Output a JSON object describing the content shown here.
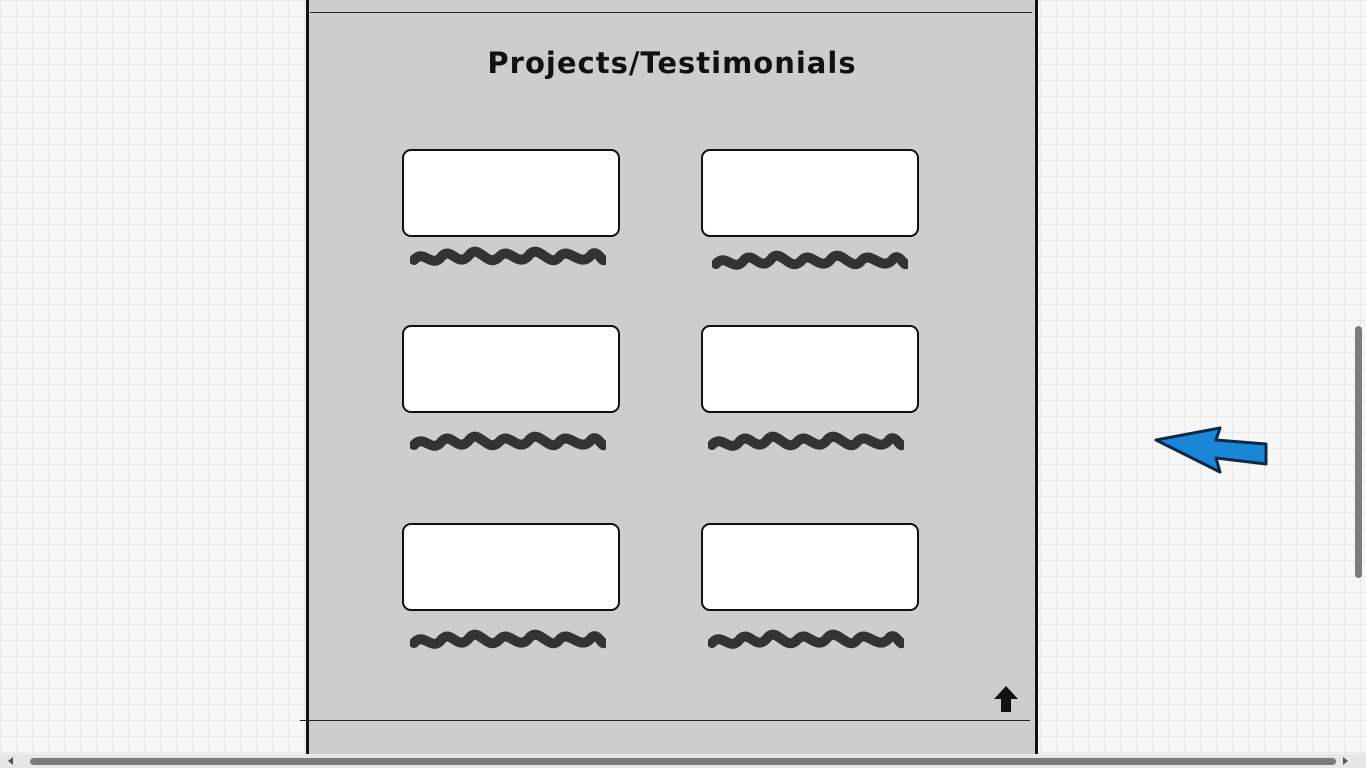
{
  "section": {
    "title": "Projects/Testimonials"
  },
  "cards": [
    {
      "placeholder": "image-placeholder"
    },
    {
      "placeholder": "image-placeholder"
    },
    {
      "placeholder": "image-placeholder"
    },
    {
      "placeholder": "image-placeholder"
    },
    {
      "placeholder": "image-placeholder"
    },
    {
      "placeholder": "image-placeholder"
    }
  ],
  "icons": {
    "back_to_top": "arrow-up-icon",
    "pointer": "blue-pointer-arrow-icon"
  },
  "colors": {
    "canvas": "#f7f7f7",
    "panel": "#cdcdcd",
    "pointer_arrow": "#1a86d6",
    "scribble": "#333333"
  }
}
